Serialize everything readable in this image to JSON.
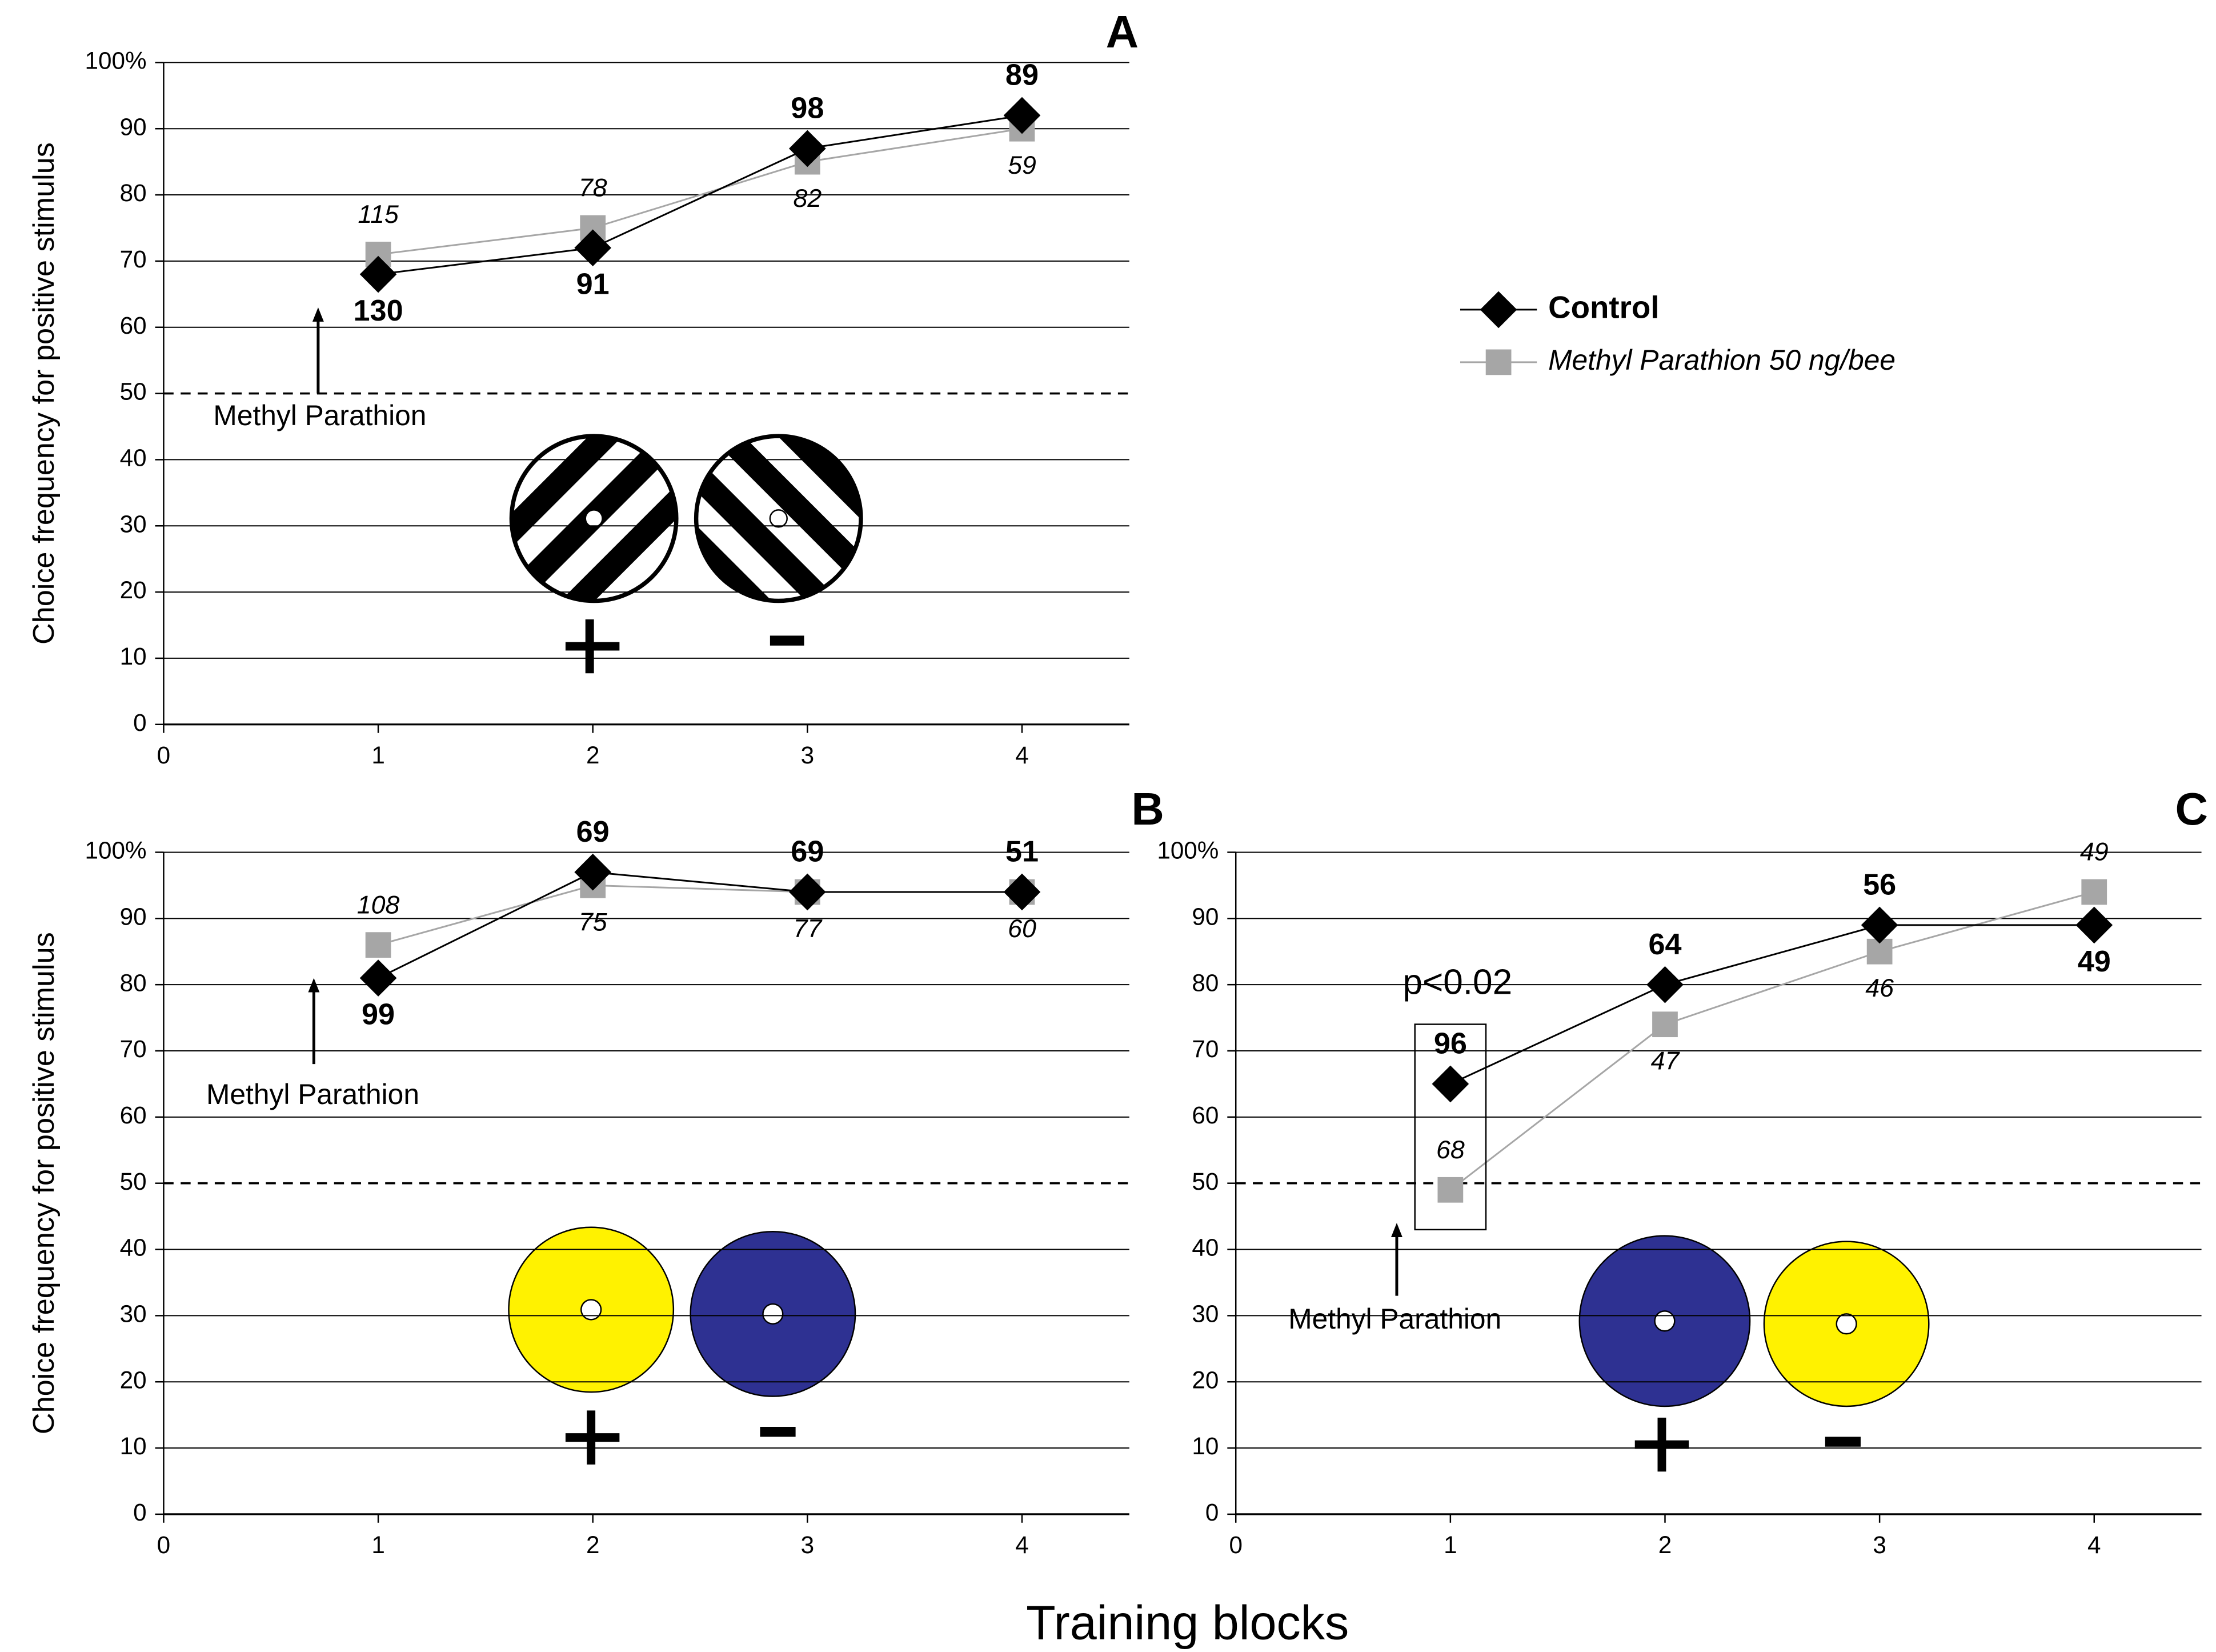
{
  "figure": {
    "xlabel": "Training blocks"
  },
  "chart_data": [
    {
      "type": "line",
      "panel": "A",
      "ylabel": "Choice frequency for positive stimulus",
      "x": [
        1,
        2,
        3,
        4
      ],
      "xlim": [
        0,
        4.5
      ],
      "xticks": [
        0,
        1,
        2,
        3,
        4
      ],
      "ylim": [
        0,
        100
      ],
      "yticks": [
        0,
        10,
        20,
        30,
        40,
        50,
        60,
        70,
        80,
        90,
        {
          "value": 100,
          "label": "100%"
        }
      ],
      "grid": true,
      "reference_line": 50,
      "legend": "right",
      "annotation": "Methyl Parathion",
      "series": [
        {
          "name": "Control",
          "color": "#000000",
          "values": [
            68,
            72,
            87,
            92
          ],
          "sample_sizes": [
            130,
            91,
            98,
            89
          ]
        },
        {
          "name": "Methyl Parathion 50 ng/bee",
          "color": "#a6a6a6",
          "values": [
            71,
            75,
            85,
            90
          ],
          "sample_sizes": [
            115,
            78,
            82,
            59
          ]
        }
      ]
    },
    {
      "type": "line",
      "panel": "B",
      "ylabel": "Choice frequency for positive stimulus",
      "x": [
        1,
        2,
        3,
        4
      ],
      "xlim": [
        0,
        4.5
      ],
      "xticks": [
        0,
        1,
        2,
        3,
        4
      ],
      "ylim": [
        0,
        100
      ],
      "yticks": [
        0,
        10,
        20,
        30,
        40,
        50,
        60,
        70,
        80,
        90,
        {
          "value": 100,
          "label": "100%"
        }
      ],
      "grid": true,
      "reference_line": 50,
      "annotation": "Methyl Parathion",
      "series": [
        {
          "color": "#000000",
          "values": [
            81,
            97,
            94,
            94
          ],
          "sample_sizes": [
            99,
            69,
            69,
            51
          ]
        },
        {
          "color": "#a6a6a6",
          "values": [
            86,
            95,
            94,
            94
          ],
          "sample_sizes": [
            108,
            75,
            77,
            60
          ]
        }
      ]
    },
    {
      "type": "line",
      "panel": "C",
      "x": [
        1,
        2,
        3,
        4
      ],
      "xlim": [
        0,
        4.5
      ],
      "xticks": [
        0,
        1,
        2,
        3,
        4
      ],
      "ylim": [
        0,
        100
      ],
      "yticks": [
        0,
        10,
        20,
        30,
        40,
        50,
        60,
        70,
        80,
        90,
        {
          "value": 100,
          "label": "100%"
        }
      ],
      "grid": true,
      "reference_line": 50,
      "annotation": "Methyl Parathion",
      "significance": "p<0.02",
      "series": [
        {
          "color": "#000000",
          "values": [
            65,
            80,
            89,
            89
          ],
          "sample_sizes": [
            96,
            64,
            56,
            49
          ]
        },
        {
          "color": "#a6a6a6",
          "values": [
            49,
            74,
            85,
            94
          ],
          "sample_sizes": [
            68,
            47,
            46,
            49
          ]
        }
      ]
    }
  ]
}
